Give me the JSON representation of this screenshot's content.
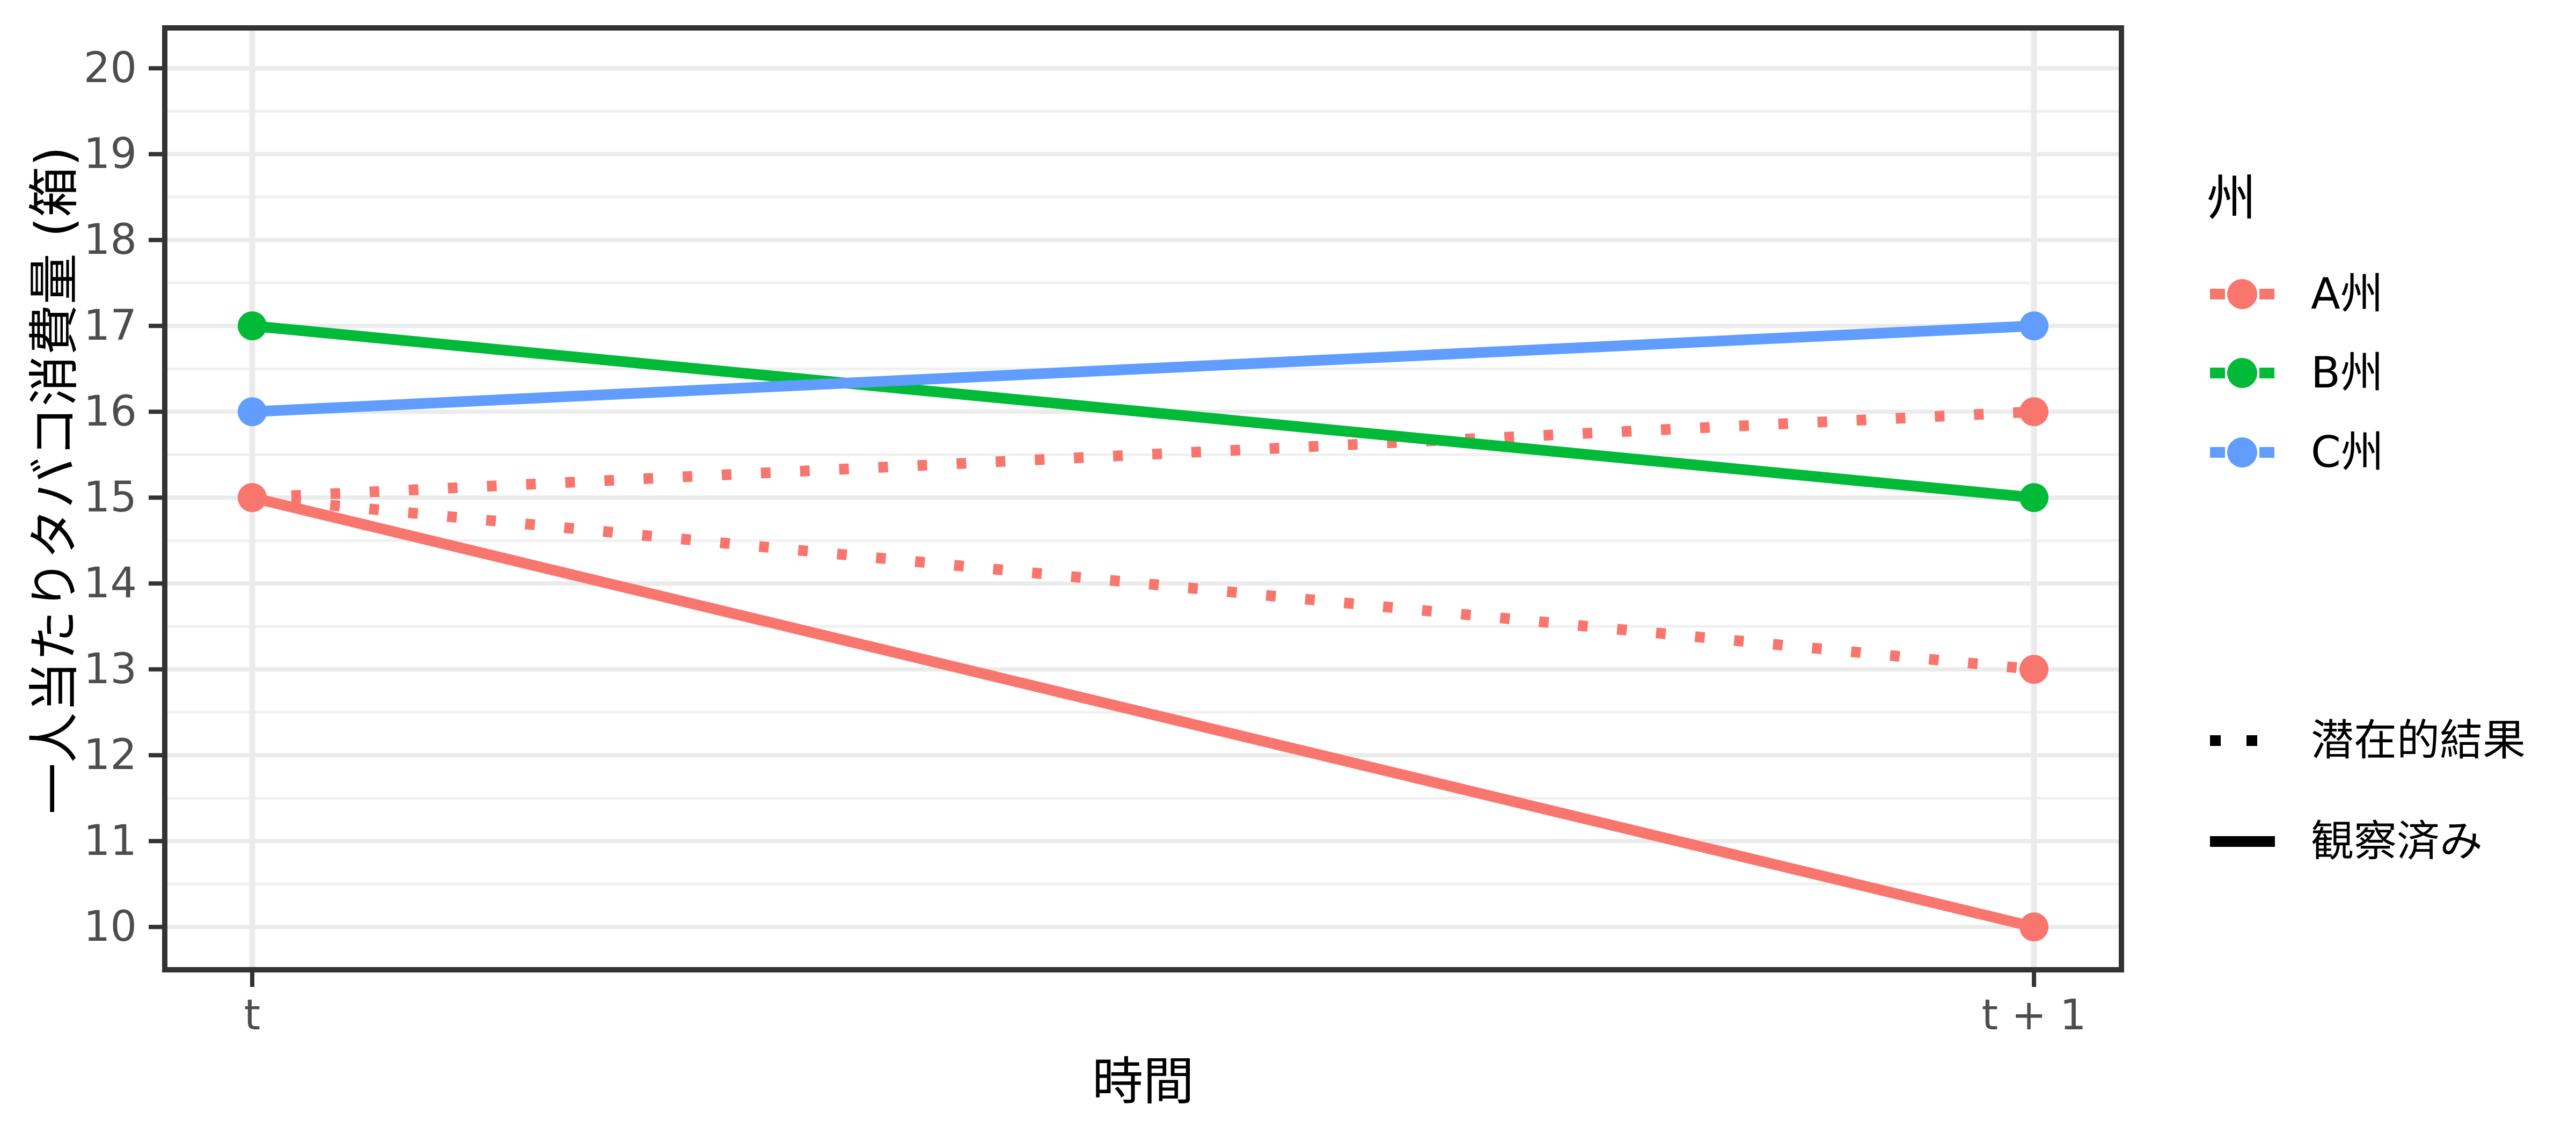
{
  "chart_data": {
    "type": "line",
    "title": "",
    "xlabel": "時間",
    "ylabel": "一人当たりタバコ消費量 (箱)",
    "x_categories": [
      "t",
      "t + 1"
    ],
    "yticks": [
      10,
      11,
      12,
      13,
      14,
      15,
      16,
      17,
      18,
      19,
      20
    ],
    "ylim": [
      9.5,
      20.5
    ],
    "grid": {
      "horizontal_major": true,
      "horizontal_minor": true,
      "vertical_major_at_categories": true,
      "legend_position": "right"
    },
    "series": [
      {
        "name": "A州 観察済み",
        "state": "A州",
        "linetype": "solid",
        "color": "#F8766D",
        "values": [
          15,
          10
        ]
      },
      {
        "name": "A州 潜在的結果 上",
        "state": "A州",
        "linetype": "dotted",
        "color": "#F8766D",
        "values": [
          15,
          16
        ]
      },
      {
        "name": "A州 潜在的結果 下",
        "state": "A州",
        "linetype": "dotted",
        "color": "#F8766D",
        "values": [
          15,
          13
        ]
      },
      {
        "name": "B州 観察済み",
        "state": "B州",
        "linetype": "solid",
        "color": "#00BA38",
        "values": [
          17,
          15
        ]
      },
      {
        "name": "C州 観察済み",
        "state": "C州",
        "linetype": "solid",
        "color": "#619CFF",
        "values": [
          16,
          17
        ]
      }
    ],
    "legends": [
      {
        "title": "州",
        "entries": [
          {
            "label": "A州",
            "color": "#F8766D"
          },
          {
            "label": "B州",
            "color": "#00BA38"
          },
          {
            "label": "C州",
            "color": "#619CFF"
          }
        ]
      },
      {
        "title": "",
        "entries": [
          {
            "label": "潜在的結果",
            "linetype": "dotted",
            "color": "#000000"
          },
          {
            "label": "観察済み",
            "linetype": "solid",
            "color": "#000000"
          }
        ]
      }
    ],
    "theme": {
      "background": "#FFFFFF",
      "grid_major": "#EBEBEB",
      "grid_minor": "#F0F0F0",
      "panel_border": "#333333",
      "tick_color": "#333333",
      "axis_text_color": "#4D4D4D",
      "text_color": "#000000"
    }
  }
}
